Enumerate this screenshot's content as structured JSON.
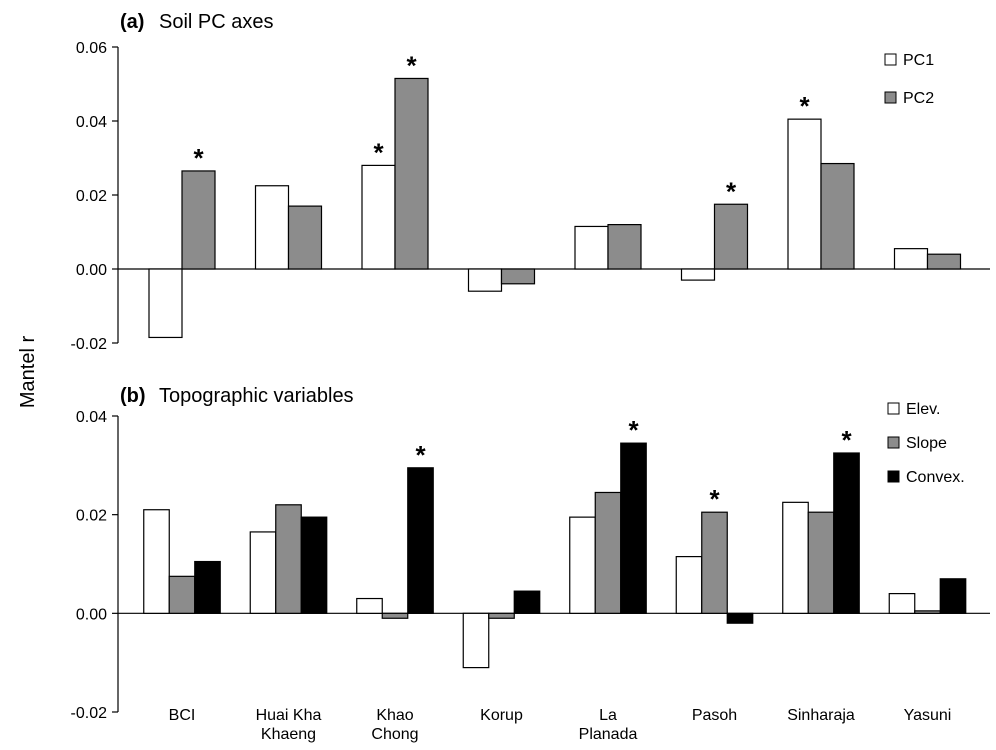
{
  "figure": {
    "ylabel": "Mantel r",
    "categories": [
      [
        "BCI"
      ],
      [
        "Huai Kha",
        "Khaeng"
      ],
      [
        "Khao",
        "Chong"
      ],
      [
        "Korup"
      ],
      [
        "La",
        "Planada"
      ],
      [
        "Pasoh"
      ],
      [
        "Sinharaja"
      ],
      [
        "Yasuni"
      ]
    ]
  },
  "chart_data": [
    {
      "type": "bar",
      "panel_letter": "(a)",
      "title": "Soil PC axes",
      "categories": [
        "BCI",
        "Huai Kha Khaeng",
        "Khao Chong",
        "Korup",
        "La Planada",
        "Pasoh",
        "Sinharaja",
        "Yasuni"
      ],
      "ylim": [
        -0.02,
        0.06
      ],
      "yticks": [
        "-0.02",
        "0.00",
        "0.02",
        "0.04",
        "0.06"
      ],
      "legend_position": "top-right",
      "series": [
        {
          "name": "PC1",
          "color": "#ffffff",
          "values": [
            -0.0185,
            0.0225,
            0.028,
            -0.006,
            0.0115,
            -0.003,
            0.0405,
            0.0055
          ],
          "significant": [
            false,
            false,
            true,
            false,
            false,
            false,
            true,
            false
          ]
        },
        {
          "name": "PC2",
          "color": "#8c8c8c",
          "values": [
            0.0265,
            0.017,
            0.0515,
            -0.004,
            0.012,
            0.0175,
            0.0285,
            0.004
          ],
          "significant": [
            true,
            false,
            true,
            false,
            false,
            true,
            false,
            false
          ]
        }
      ],
      "significance_marker": "*"
    },
    {
      "type": "bar",
      "panel_letter": "(b)",
      "title": "Topographic variables",
      "categories": [
        "BCI",
        "Huai Kha Khaeng",
        "Khao Chong",
        "Korup",
        "La Planada",
        "Pasoh",
        "Sinharaja",
        "Yasuni"
      ],
      "ylim": [
        -0.02,
        0.04
      ],
      "yticks": [
        "-0.02",
        "0.00",
        "0.02",
        "0.04"
      ],
      "legend_position": "top-right",
      "series": [
        {
          "name": "Elev.",
          "color": "#ffffff",
          "values": [
            0.021,
            0.0165,
            0.003,
            -0.011,
            0.0195,
            0.0115,
            0.0225,
            0.004
          ],
          "significant": [
            false,
            false,
            false,
            false,
            false,
            false,
            false,
            false
          ]
        },
        {
          "name": "Slope",
          "color": "#8c8c8c",
          "values": [
            0.0075,
            0.022,
            -0.001,
            -0.001,
            0.0245,
            0.0205,
            0.0205,
            0.0005
          ],
          "significant": [
            false,
            false,
            false,
            false,
            false,
            true,
            false,
            false
          ]
        },
        {
          "name": "Convex.",
          "color": "#000000",
          "values": [
            0.0105,
            0.0195,
            0.0295,
            0.0045,
            0.0345,
            -0.002,
            0.0325,
            0.007
          ],
          "significant": [
            false,
            false,
            true,
            false,
            true,
            false,
            true,
            false
          ]
        }
      ],
      "significance_marker": "*"
    }
  ]
}
